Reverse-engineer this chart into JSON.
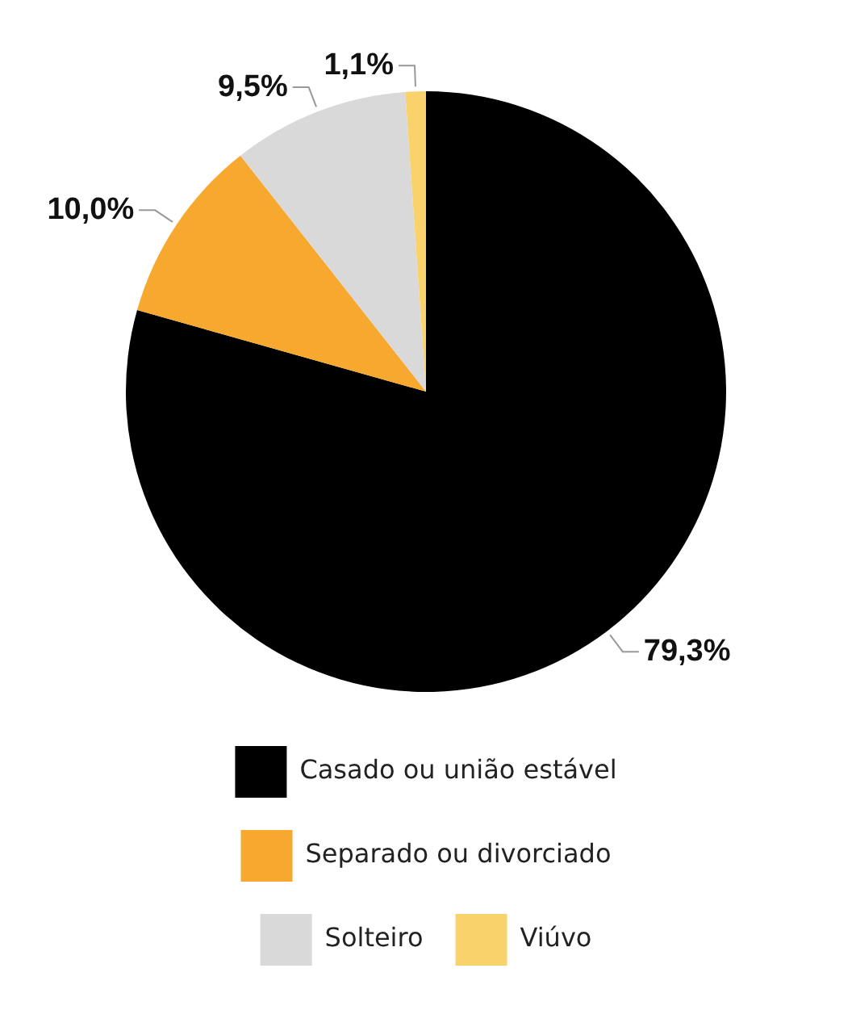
{
  "chart_data": {
    "type": "pie",
    "categories": [
      "Casado ou união estável",
      "Separado ou divorciado",
      "Solteiro",
      "Viúvo"
    ],
    "values": [
      79.3,
      10.0,
      9.5,
      1.1
    ],
    "colors": [
      "#000000",
      "#f7a82f",
      "#d9d9d9",
      "#fad26b"
    ],
    "value_labels": [
      "79,3%",
      "10,0%",
      "9,5%",
      "1,1%"
    ],
    "legend": "bottom"
  }
}
